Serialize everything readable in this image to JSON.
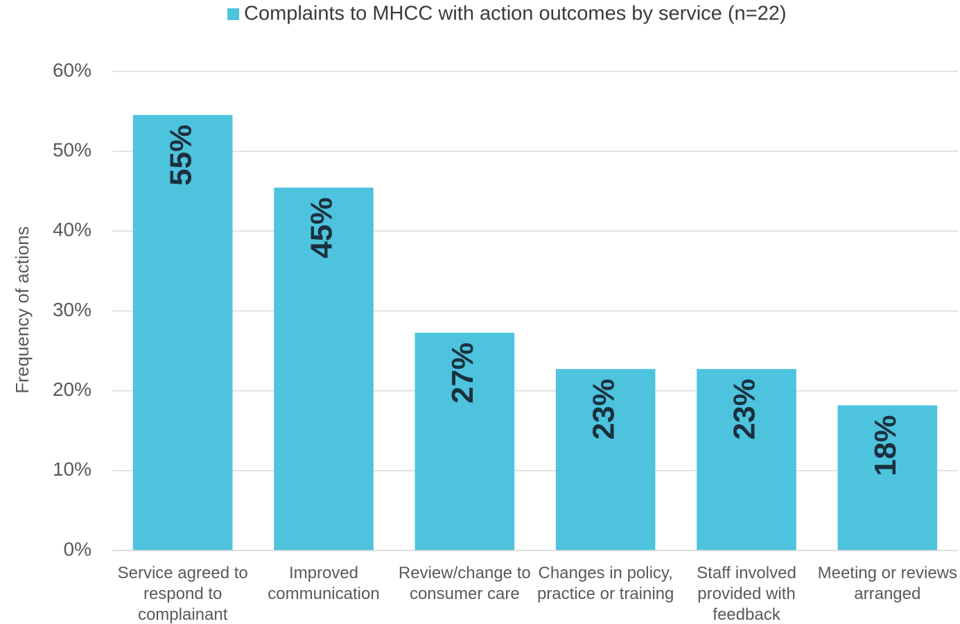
{
  "chart_data": {
    "type": "bar",
    "legend": "Complaints to MHCC with action outcomes by service (n=22)",
    "y_label": "Frequency of actions",
    "categories": [
      "Service agreed to respond to complainant",
      "Improved communication",
      "Review/change to consumer care",
      "Changes in policy, practice or training",
      "Staff involved provided with feedback",
      "Meeting or reviews arranged"
    ],
    "values": [
      54.55,
      45.45,
      27.27,
      22.73,
      22.73,
      18.18
    ],
    "value_labels": [
      "55%",
      "45%",
      "27%",
      "23%",
      "23%",
      "18%"
    ],
    "color": "#4dc3de",
    "ylim": [
      0,
      60
    ],
    "yticks": [
      {
        "value": 0,
        "label": "0%"
      },
      {
        "value": 10,
        "label": "10%"
      },
      {
        "value": 20,
        "label": "20%"
      },
      {
        "value": 30,
        "label": "30%"
      },
      {
        "value": 40,
        "label": "40%"
      },
      {
        "value": 50,
        "label": "50%"
      },
      {
        "value": 60,
        "label": "60%"
      }
    ],
    "grid": true
  }
}
